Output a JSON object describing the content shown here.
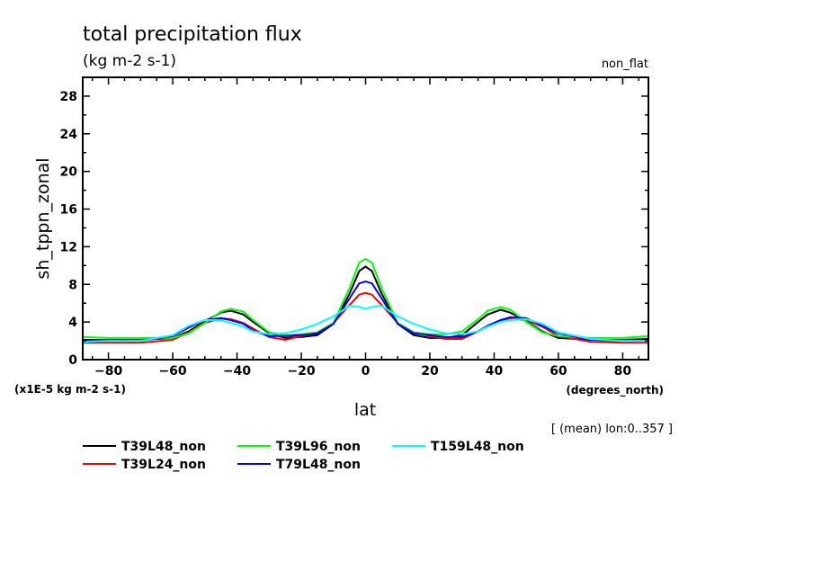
{
  "chart_data": {
    "type": "line",
    "title": "total precipitation flux",
    "subtitle": "(kg m-2 s-1)",
    "corner_label": "non_flat",
    "xlabel": "lat",
    "xunits": "(degrees_north)",
    "ylabel": "sh_tppn_zonal",
    "yunits": "(x1E-5 kg m-2 s-1)",
    "footnote": "[ (mean) lon:0..357 ]",
    "xlim": [
      -88,
      88
    ],
    "ylim": [
      0,
      30
    ],
    "xticks": [
      -80,
      -60,
      -40,
      -20,
      0,
      20,
      40,
      60,
      80
    ],
    "xtick_labels": [
      "-80",
      "-60",
      "-40",
      "-20",
      "0",
      "20",
      "40",
      "60",
      "80"
    ],
    "yticks": [
      0,
      4,
      8,
      12,
      16,
      20,
      24,
      28
    ],
    "ytick_labels": [
      "0",
      "4",
      "8",
      "12",
      "16",
      "20",
      "24",
      "28"
    ],
    "grid": false,
    "legend_position": "bottom",
    "x": [
      -88,
      -80,
      -70,
      -60,
      -55,
      -50,
      -45,
      -42,
      -38,
      -35,
      -30,
      -25,
      -20,
      -15,
      -10,
      -5,
      -2,
      0,
      2,
      5,
      10,
      15,
      20,
      25,
      30,
      35,
      38,
      42,
      45,
      50,
      55,
      60,
      70,
      80,
      88
    ],
    "series": [
      {
        "name": "T39L48_non",
        "color": "#000000",
        "values": [
          2.1,
          2.1,
          2.1,
          2.3,
          3.0,
          4.1,
          5.0,
          5.2,
          4.8,
          4.0,
          2.8,
          2.3,
          2.4,
          2.6,
          3.8,
          7.0,
          9.4,
          9.9,
          9.4,
          7.0,
          3.8,
          2.6,
          2.3,
          2.3,
          2.6,
          4.0,
          4.8,
          5.3,
          5.0,
          4.1,
          3.0,
          2.3,
          2.1,
          2.1,
          2.2
        ]
      },
      {
        "name": "T39L24_non",
        "color": "#ff0000",
        "values": [
          1.8,
          1.8,
          1.8,
          2.1,
          2.9,
          3.9,
          4.4,
          4.3,
          3.9,
          3.3,
          2.4,
          2.1,
          2.5,
          2.9,
          3.9,
          5.8,
          6.9,
          7.1,
          6.9,
          5.8,
          3.9,
          2.9,
          2.5,
          2.2,
          2.2,
          3.0,
          3.6,
          4.2,
          4.3,
          4.2,
          3.5,
          2.5,
          1.9,
          1.8,
          1.8
        ]
      },
      {
        "name": "T39L96_non",
        "color": "#00ff00",
        "values": [
          2.4,
          2.3,
          2.3,
          2.3,
          2.8,
          3.9,
          5.1,
          5.4,
          5.1,
          4.2,
          2.9,
          2.6,
          2.7,
          2.9,
          3.9,
          7.6,
          10.3,
          10.7,
          10.3,
          7.6,
          3.9,
          2.9,
          2.7,
          2.7,
          3.0,
          4.3,
          5.2,
          5.6,
          5.3,
          4.0,
          2.9,
          2.5,
          2.3,
          2.3,
          2.5
        ]
      },
      {
        "name": "T79L48_non",
        "color": "#0000ff",
        "values": [
          2.0,
          2.0,
          2.0,
          2.5,
          3.4,
          4.2,
          4.4,
          4.2,
          3.8,
          3.1,
          2.5,
          2.5,
          2.6,
          2.8,
          3.8,
          6.5,
          8.1,
          8.3,
          8.1,
          6.5,
          3.8,
          2.8,
          2.6,
          2.4,
          2.4,
          3.0,
          3.6,
          4.2,
          4.5,
          4.4,
          3.6,
          2.8,
          2.1,
          2.0,
          2.0
        ]
      },
      {
        "name": "T159L48_non",
        "color": "#00ffff",
        "values": [
          1.9,
          2.0,
          2.0,
          2.6,
          3.6,
          4.2,
          4.2,
          3.9,
          3.5,
          3.0,
          2.7,
          2.8,
          3.2,
          3.8,
          4.6,
          5.7,
          5.6,
          5.4,
          5.6,
          5.7,
          4.6,
          3.8,
          3.2,
          2.8,
          2.7,
          3.0,
          3.5,
          4.0,
          4.2,
          4.3,
          3.8,
          2.9,
          2.2,
          2.0,
          2.0
        ]
      }
    ]
  }
}
